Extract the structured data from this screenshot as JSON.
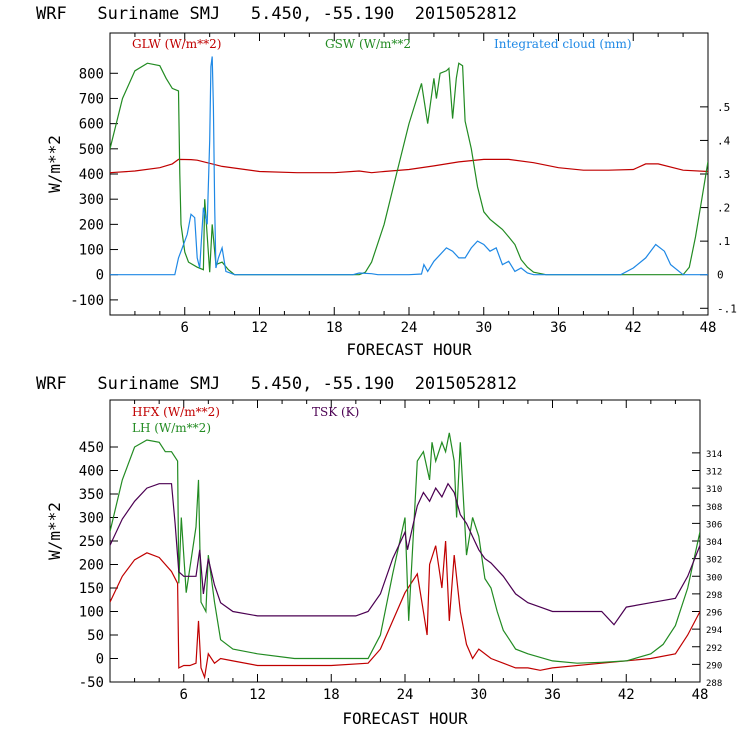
{
  "chart_data": [
    {
      "type": "line",
      "title": "WRF   Suriname SMJ   5.450, -55.190  2015052812",
      "xlabel": "FORECAST HOUR",
      "ylabel": "W/m**2",
      "xlim": [
        0,
        48
      ],
      "ylim": [
        -160,
        960
      ],
      "y2lim": [
        -0.12,
        0.72
      ],
      "xticks": [
        "6",
        "12",
        "18",
        "24",
        "30",
        "36",
        "42",
        "48"
      ],
      "yticks": [
        "-100",
        "0",
        "100",
        "200",
        "300",
        "400",
        "500",
        "600",
        "700",
        "800"
      ],
      "y2ticks": [
        "-.1",
        "0",
        ".1",
        ".2",
        ".3",
        ".4",
        ".5"
      ],
      "series": [
        {
          "name": "GLW (W/m**2)",
          "axis": "left",
          "color": "#c00000",
          "x": [
            0,
            2,
            4,
            5,
            5.5,
            6.5,
            7,
            9,
            12,
            15,
            18,
            20,
            21,
            22,
            24,
            26,
            28,
            30,
            32,
            34,
            36,
            38,
            40,
            42,
            43,
            44,
            46,
            48
          ],
          "y": [
            405,
            412,
            425,
            440,
            458,
            457,
            455,
            430,
            410,
            405,
            405,
            412,
            405,
            410,
            418,
            432,
            448,
            458,
            458,
            445,
            425,
            415,
            415,
            418,
            440,
            440,
            415,
            410
          ]
        },
        {
          "name": "GSW (W/m**2",
          "axis": "left",
          "color": "#228b22",
          "x": [
            0,
            1,
            2,
            3,
            4,
            4.5,
            5,
            5.5,
            5.6,
            5.7,
            6,
            6.3,
            7,
            7.5,
            7.6,
            8,
            8.2,
            8.5,
            9,
            9.5,
            10,
            20,
            20.5,
            21,
            22,
            23,
            24,
            25,
            25.5,
            26,
            26.2,
            26.5,
            27,
            27.2,
            27.5,
            27.8,
            28,
            28.3,
            28.5,
            29,
            29.5,
            30,
            30.5,
            31,
            31.5,
            32,
            32.5,
            33,
            33.5,
            34,
            35,
            46,
            46.5,
            47,
            47.5,
            48
          ],
          "y": [
            500,
            700,
            810,
            840,
            830,
            780,
            740,
            730,
            400,
            200,
            90,
            50,
            30,
            20,
            300,
            10,
            200,
            40,
            50,
            20,
            0,
            0,
            10,
            50,
            200,
            400,
            600,
            760,
            600,
            780,
            700,
            800,
            810,
            820,
            620,
            780,
            840,
            830,
            610,
            500,
            350,
            250,
            220,
            200,
            180,
            150,
            120,
            60,
            30,
            10,
            0,
            0,
            30,
            150,
            300,
            450
          ]
        },
        {
          "name": "Integrated cloud (mm)",
          "axis": "right",
          "color": "#1e88e5",
          "x": [
            0,
            5.2,
            5.5,
            5.8,
            6.2,
            6.5,
            6.8,
            7,
            7.2,
            7.5,
            7.8,
            8,
            8.1,
            8.2,
            8.3,
            8.4,
            8.5,
            8.7,
            9,
            9.3,
            10,
            19.5,
            20,
            21,
            21.5,
            22,
            24,
            25,
            25.2,
            25.5,
            26,
            27,
            27.5,
            28,
            28.5,
            29,
            29.5,
            30,
            30.5,
            31,
            31.5,
            32,
            32.5,
            33,
            33.5,
            34,
            41,
            42,
            43,
            43.8,
            44.5,
            45,
            46,
            48
          ],
          "y": [
            0,
            0,
            0.05,
            0.08,
            0.12,
            0.18,
            0.17,
            0.05,
            0.02,
            0.2,
            0.15,
            0.4,
            0.62,
            0.65,
            0.5,
            0.2,
            0.02,
            0.05,
            0.08,
            0.01,
            0,
            0,
            0.005,
            0.003,
            0,
            0,
            0,
            0.002,
            0.03,
            0.01,
            0.04,
            0.08,
            0.07,
            0.05,
            0.05,
            0.08,
            0.1,
            0.09,
            0.07,
            0.08,
            0.03,
            0.04,
            0.01,
            0.02,
            0.005,
            0,
            0,
            0.02,
            0.05,
            0.09,
            0.07,
            0.03,
            0,
            0
          ]
        }
      ]
    },
    {
      "type": "line",
      "title": "WRF   Suriname SMJ   5.450, -55.190  2015052812",
      "xlabel": "FORECAST HOUR",
      "ylabel": "W/m**2",
      "xlim": [
        0,
        48
      ],
      "ylim": [
        -50,
        550
      ],
      "y2lim": [
        288,
        320
      ],
      "xticks": [
        "6",
        "12",
        "18",
        "24",
        "30",
        "36",
        "42",
        "48"
      ],
      "yticks": [
        "-50",
        "0",
        "50",
        "100",
        "150",
        "200",
        "250",
        "300",
        "350",
        "400",
        "450"
      ],
      "y2ticks": [
        "288",
        "290",
        "292",
        "294",
        "296",
        "298",
        "300",
        "302",
        "304",
        "306",
        "308",
        "310",
        "312",
        "314"
      ],
      "series": [
        {
          "name": "HFX (W/m**2)",
          "axis": "left",
          "color": "#c00000",
          "x": [
            0,
            1,
            2,
            3,
            4,
            5,
            5.5,
            5.6,
            6,
            6.5,
            7,
            7.2,
            7.4,
            7.7,
            8,
            8.5,
            9,
            10,
            12,
            18,
            21,
            22,
            23,
            24,
            25,
            25.5,
            25.8,
            26,
            26.5,
            27,
            27.3,
            27.6,
            28,
            28.5,
            29,
            29.5,
            30,
            31,
            32,
            33,
            34,
            35,
            36,
            40,
            44,
            46,
            47,
            48
          ],
          "y": [
            120,
            175,
            210,
            225,
            215,
            185,
            160,
            -20,
            -15,
            -15,
            -10,
            80,
            -20,
            -40,
            10,
            -10,
            0,
            -5,
            -15,
            -15,
            -10,
            20,
            80,
            140,
            180,
            100,
            50,
            200,
            240,
            150,
            250,
            80,
            220,
            100,
            30,
            0,
            20,
            0,
            -10,
            -20,
            -20,
            -25,
            -20,
            -10,
            0,
            10,
            50,
            100
          ]
        },
        {
          "name": "LH  (W/m**2)",
          "axis": "left",
          "color": "#228b22",
          "x": [
            0,
            1,
            2,
            3,
            4,
            4.5,
            5,
            5.5,
            5.6,
            5.8,
            6.2,
            7,
            7.2,
            7.4,
            7.8,
            8,
            8.5,
            9,
            10,
            12,
            15,
            18,
            21,
            22,
            23,
            24,
            24.3,
            25,
            25.5,
            26,
            26.2,
            26.5,
            27,
            27.3,
            27.6,
            28,
            28.2,
            28.5,
            29,
            29.5,
            30,
            30.5,
            31,
            31.5,
            32,
            32.5,
            33,
            34,
            36,
            38,
            40,
            42,
            44,
            45,
            46,
            47,
            48
          ],
          "y": [
            270,
            380,
            450,
            465,
            460,
            440,
            440,
            420,
            160,
            300,
            140,
            280,
            380,
            120,
            100,
            220,
            120,
            40,
            20,
            10,
            0,
            0,
            0,
            50,
            180,
            300,
            80,
            420,
            440,
            380,
            460,
            420,
            460,
            440,
            480,
            420,
            300,
            460,
            220,
            300,
            260,
            170,
            150,
            100,
            60,
            40,
            20,
            10,
            -5,
            -10,
            -8,
            -5,
            10,
            30,
            70,
            150,
            270
          ]
        },
        {
          "name": "TSK (K)",
          "axis": "right",
          "color": "#4b0052",
          "x": [
            0,
            1,
            2,
            3,
            4,
            5,
            5.3,
            5.6,
            6,
            7,
            7.3,
            7.6,
            8,
            8.5,
            9,
            10,
            12,
            15,
            18,
            20,
            21,
            22,
            23,
            24,
            24.2,
            25,
            25.5,
            26,
            26.5,
            27,
            27.5,
            28,
            28.5,
            29,
            29.5,
            30,
            30.5,
            31,
            32,
            33,
            34,
            35,
            36,
            40,
            41,
            42,
            44,
            46,
            47,
            48
          ],
          "y": [
            303.5,
            306.5,
            308.5,
            310,
            310.5,
            310.5,
            306,
            300.5,
            300,
            300,
            303,
            298,
            302,
            299,
            297,
            296,
            295.5,
            295.5,
            295.5,
            295.5,
            296,
            298,
            302,
            305,
            303,
            308,
            309.5,
            308.5,
            310,
            309,
            310.5,
            309.5,
            307,
            306,
            304.5,
            303,
            302,
            301.5,
            300,
            298,
            297,
            296.5,
            296,
            296,
            294.5,
            296.5,
            297,
            297.5,
            300,
            303.5
          ]
        }
      ]
    }
  ]
}
